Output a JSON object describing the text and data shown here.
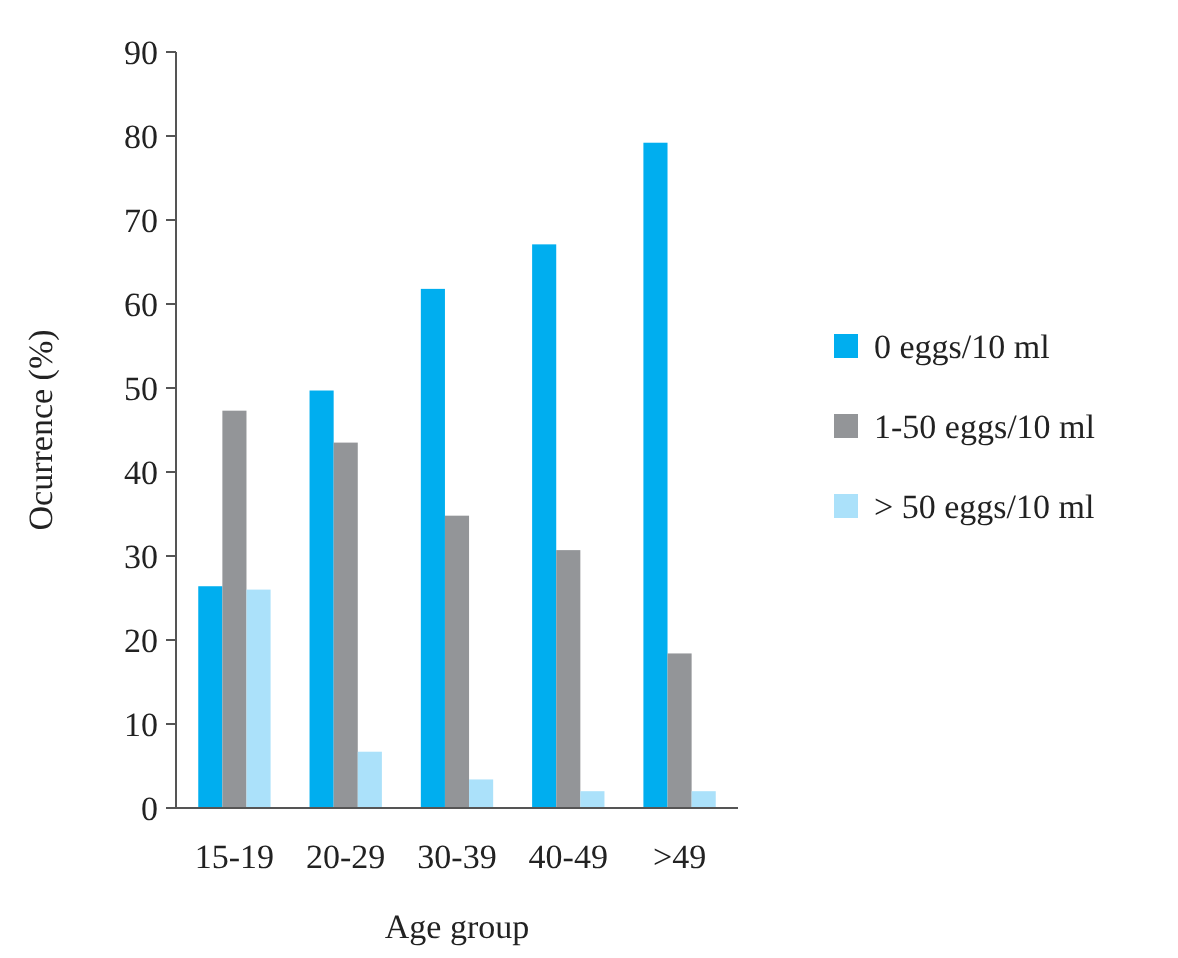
{
  "chart_data": {
    "type": "bar",
    "xlabel": "Age group",
    "ylabel": "Ocurrence (%)",
    "categories": [
      "15-19",
      "20-29",
      "30-39",
      "40-49",
      ">49"
    ],
    "series": [
      {
        "name": "0 eggs/10 ml",
        "color": "#00aeef",
        "values": [
          26.4,
          49.7,
          61.8,
          67.1,
          79.2
        ]
      },
      {
        "name": "1-50 eggs/10 ml",
        "color": "#939598",
        "values": [
          47.3,
          43.5,
          34.8,
          30.7,
          18.4
        ]
      },
      {
        "name": "> 50 eggs/10 ml",
        "color": "#abe1fa",
        "values": [
          26.0,
          6.7,
          3.4,
          2.0,
          2.0
        ]
      }
    ],
    "ylim": [
      0,
      90
    ],
    "yticks": [
      0,
      10,
      20,
      30,
      40,
      50,
      60,
      70,
      80,
      90
    ],
    "grid": false,
    "legend": "right"
  }
}
